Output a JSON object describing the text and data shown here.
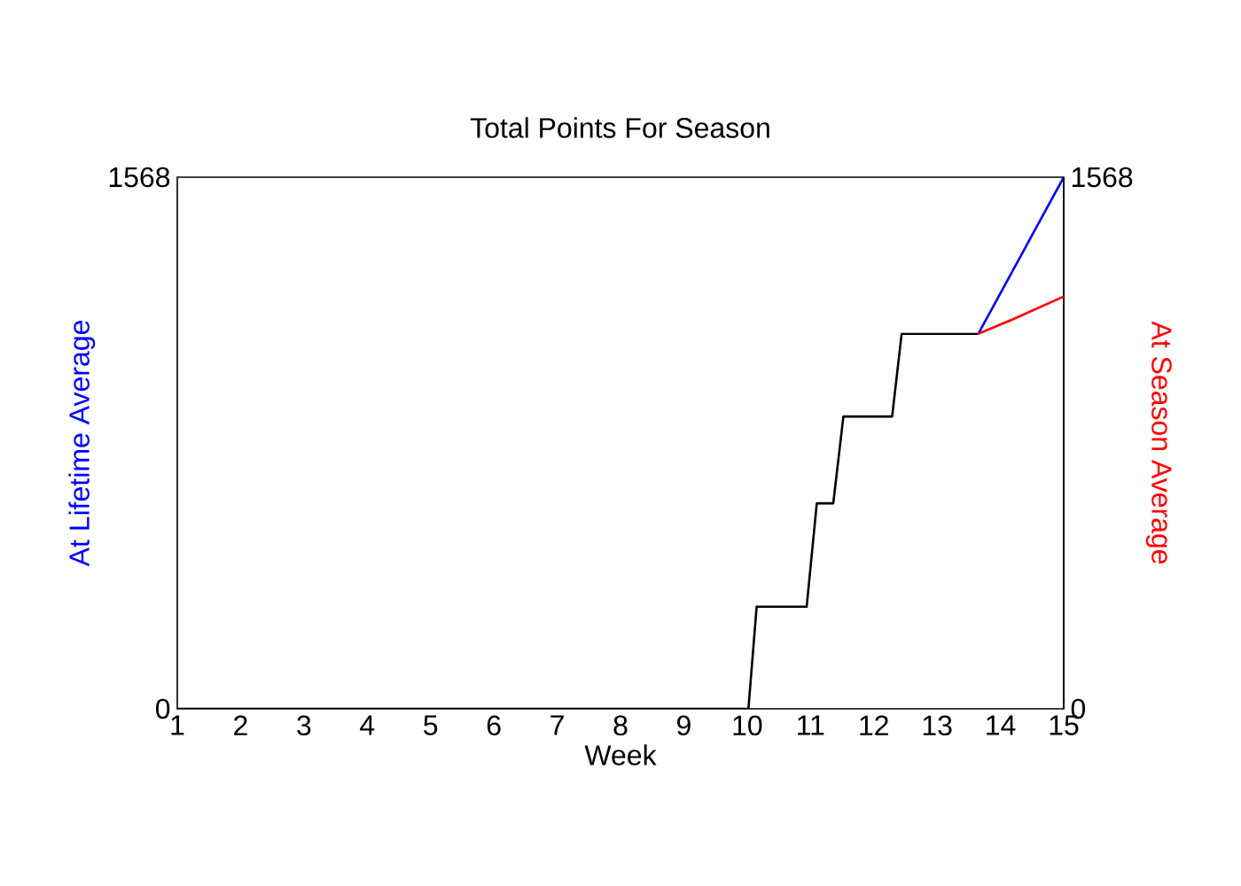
{
  "chart_data": {
    "type": "line",
    "title": "Total Points For Season",
    "xlabel": "Week",
    "ylabel": "At Lifetime Average",
    "y2label": "At Season Average",
    "xlim": [
      1,
      15
    ],
    "xticks": [
      1,
      2,
      3,
      4,
      5,
      6,
      7,
      8,
      9,
      10,
      11,
      12,
      13,
      14,
      15
    ],
    "ylim": [
      0,
      1568
    ],
    "yticks": [
      0,
      1568
    ],
    "y2lim": [
      0,
      1568
    ],
    "y2ticks": [
      0,
      1568
    ],
    "series": [
      {
        "color": "#000000",
        "x": [
          1,
          10.02,
          10.15,
          10.94,
          11.1,
          11.36,
          11.52,
          12.29,
          12.44,
          13.65
        ],
        "values": [
          0,
          0,
          301,
          301,
          606,
          606,
          862,
          862,
          1106,
          1106
        ]
      },
      {
        "color": "#0000ff",
        "x": [
          13.65,
          15
        ],
        "values": [
          1106,
          1568
        ]
      },
      {
        "color": "#ff0000",
        "axis": "y2",
        "x": [
          13.65,
          14.21,
          15
        ],
        "values": [
          1106,
          1150,
          1216
        ]
      }
    ]
  }
}
